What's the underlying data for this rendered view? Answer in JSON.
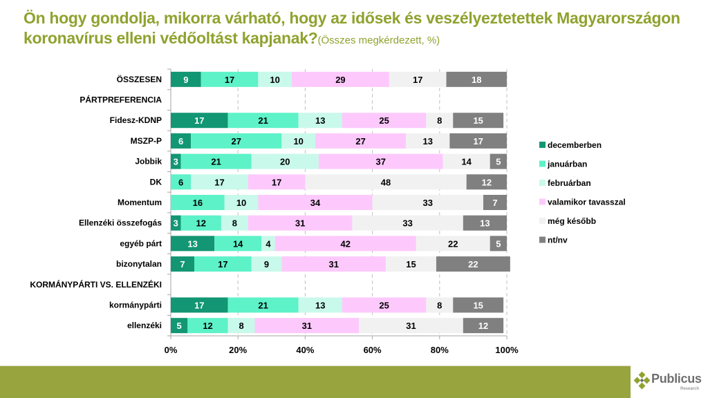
{
  "title": {
    "main": "Ön hogy gondolja, mikorra várható, hogy az idősek és veszélyeztetettek Magyarországon koronavírus elleni védőoltást kapjanak?",
    "subtitle": "(Összes megkérdezett, %)"
  },
  "logo": {
    "name": "Publicus",
    "sub": "Research"
  },
  "colors": {
    "title": "#8fa22e",
    "footer": "#98a43e"
  },
  "chart_data": {
    "type": "bar",
    "orientation": "horizontal",
    "stacked": "percent",
    "title": "Ön hogy gondolja, mikorra várható, hogy az idősek és veszélyeztetettek Magyarországon koronavírus elleni védőoltást kapjanak? (Összes megkérdezett, %)",
    "xlabel": "",
    "ylabel": "",
    "xlim": [
      0,
      100
    ],
    "x_ticks": [
      "0%",
      "20%",
      "40%",
      "60%",
      "80%",
      "100%"
    ],
    "grid": "vertical dashed",
    "legend_position": "right",
    "categories": [
      "ÖSSZESEN",
      "PÁRTPREFERENCIA",
      "Fidesz-KDNP",
      "MSZP-P",
      "Jobbik",
      "DK",
      "Momentum",
      "Ellenzéki összefogás",
      "egyéb párt",
      "bizonytalan",
      "KORMÁNYPÁRTI VS. ELLENZÉKI",
      "kormánypárti",
      "ellenzéki"
    ],
    "header_categories": [
      "PÁRTPREFERENCIA",
      "KORMÁNYPÁRTI VS. ELLENZÉKI"
    ],
    "series": [
      {
        "name": "decemberben",
        "color": "#129673",
        "label_color": "#ffffff",
        "values": [
          9,
          null,
          17,
          6,
          3,
          null,
          null,
          3,
          13,
          7,
          null,
          17,
          5
        ]
      },
      {
        "name": "januárban",
        "color": "#5df2c8",
        "label_color": "#000000",
        "values": [
          17,
          null,
          21,
          27,
          21,
          6,
          16,
          12,
          14,
          17,
          null,
          21,
          12
        ]
      },
      {
        "name": "februárban",
        "color": "#c9f9ea",
        "label_color": "#000000",
        "values": [
          10,
          null,
          13,
          10,
          20,
          17,
          10,
          8,
          4,
          9,
          null,
          13,
          8
        ]
      },
      {
        "name": "valamikor tavasszal",
        "color": "#fdc9fc",
        "label_color": "#000000",
        "values": [
          29,
          null,
          25,
          27,
          37,
          17,
          34,
          31,
          42,
          31,
          null,
          25,
          31
        ]
      },
      {
        "name": "még később",
        "color": "#f1f1f1",
        "label_color": "#000000",
        "values": [
          17,
          null,
          8,
          13,
          14,
          48,
          33,
          33,
          22,
          15,
          null,
          8,
          31
        ]
      },
      {
        "name": "nt/nv",
        "color": "#808080",
        "label_color": "#ffffff",
        "values": [
          18,
          null,
          15,
          17,
          5,
          12,
          7,
          13,
          5,
          22,
          null,
          15,
          12
        ]
      }
    ]
  }
}
